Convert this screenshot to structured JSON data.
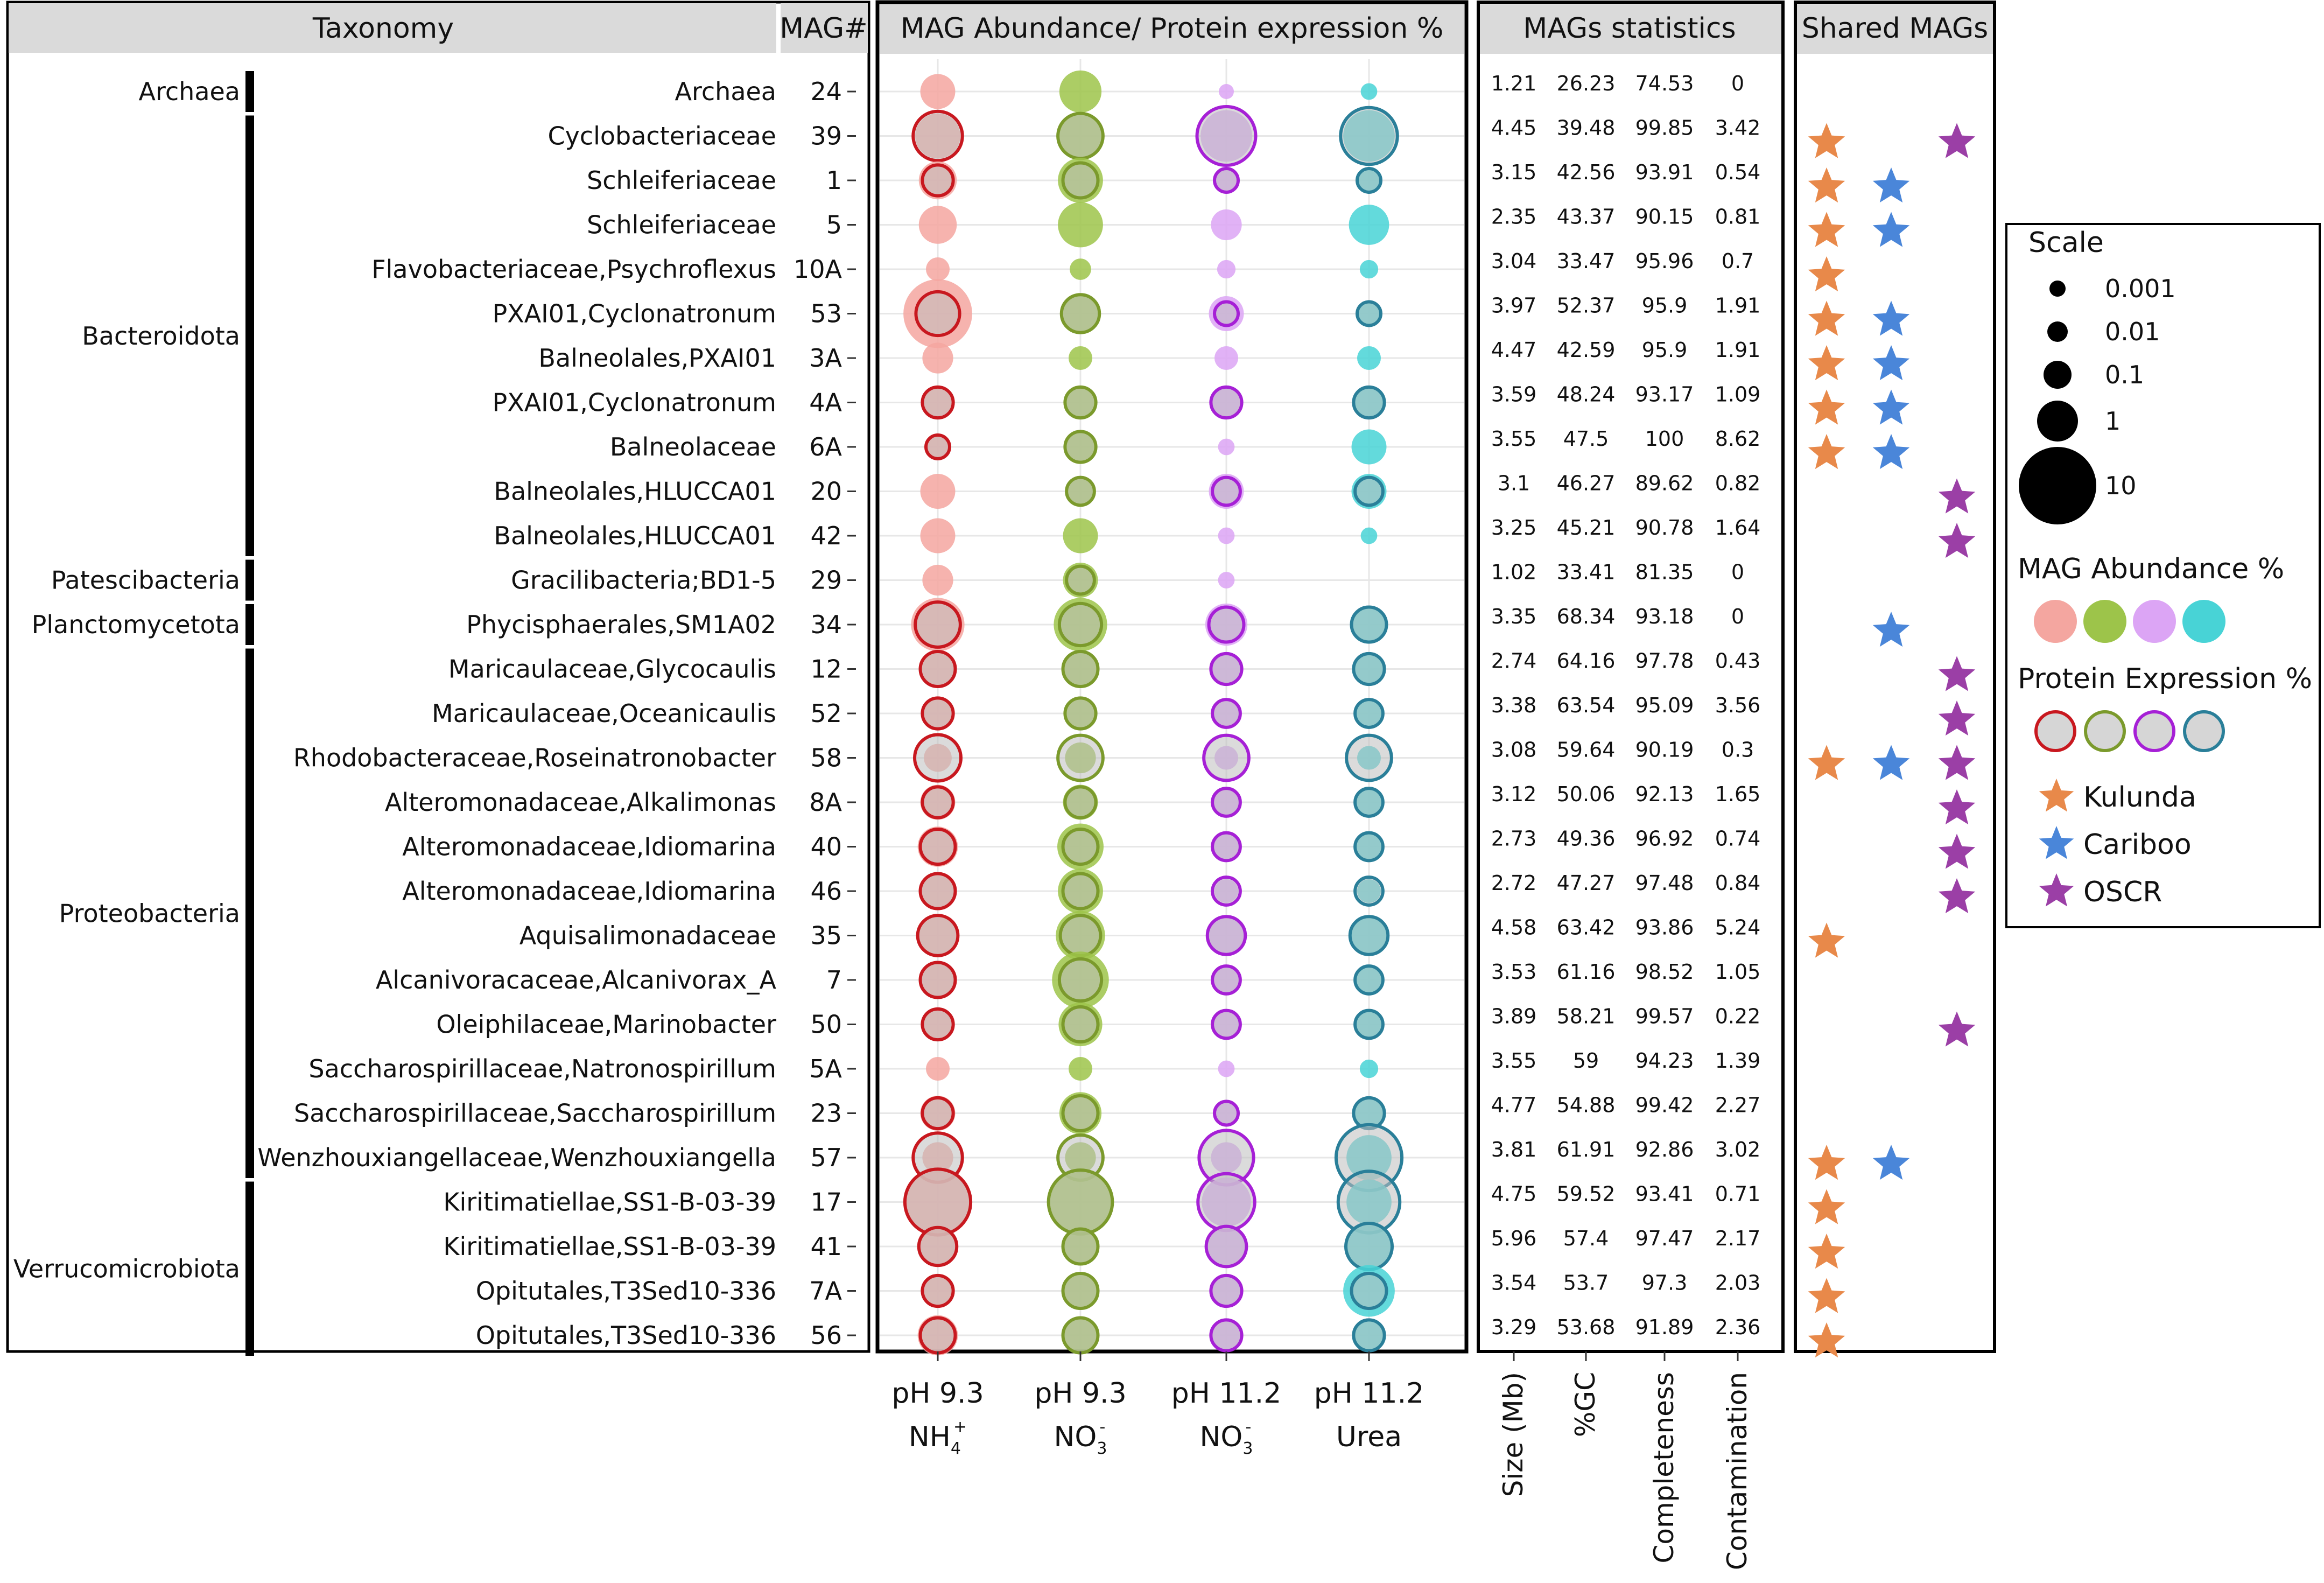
{
  "chart_data": {
    "type": "bubble-matrix",
    "headers": {
      "taxonomy": "Taxonomy",
      "mag": "MAG#",
      "abundance": "MAG Abundance/ Protein expression %",
      "stats": "MAGs statistics",
      "shared": "Shared MAGs"
    },
    "phyla": [
      {
        "name": "Archaea",
        "rows": [
          0,
          0
        ]
      },
      {
        "name": "Bacteroidota",
        "rows": [
          1,
          10
        ]
      },
      {
        "name": "Patescibacteria",
        "rows": [
          11,
          11
        ]
      },
      {
        "name": "Planctomycetota",
        "rows": [
          12,
          12
        ]
      },
      {
        "name": "Proteobacteria",
        "rows": [
          13,
          24
        ]
      },
      {
        "name": "Verrucomicrobiota",
        "rows": [
          25,
          28
        ]
      }
    ],
    "conditions": [
      {
        "line1": "pH 9.3",
        "line2": "NH",
        "sub": "4",
        "sup": "+",
        "fill": "#f4a6a0",
        "stroke": "#c8181f"
      },
      {
        "line1": "pH 9.3",
        "line2": "NO",
        "sub": "3",
        "sup": "-",
        "fill": "#9dc44a",
        "stroke": "#7b9a2c"
      },
      {
        "line1": "pH 11.2",
        "line2": "NO",
        "sub": "3",
        "sup": "-",
        "fill": "#dca5f5",
        "stroke": "#a620d6"
      },
      {
        "line1": "pH 11.2",
        "line2": "Urea",
        "sub": "",
        "sup": "",
        "fill": "#48d3d6",
        "stroke": "#2a7f99"
      }
    ],
    "stats_columns": [
      "Size (Mb)",
      "%GC",
      "Completeness",
      "Contamination"
    ],
    "rows": [
      {
        "taxon": "Archaea",
        "mag": "24",
        "stats": [
          "1.21",
          "26.23",
          "74.53",
          "0"
        ],
        "ab": [
          0.3,
          0.6,
          0.02,
          0.05
        ],
        "pe": [
          null,
          null,
          null,
          null
        ],
        "shared": [
          false,
          false,
          false
        ]
      },
      {
        "taxon": "Cyclobacteriaceae",
        "mag": "39",
        "stats": [
          "4.45",
          "39.48",
          "99.85",
          "3.42"
        ],
        "ab": [
          0.8,
          0.8,
          1.5,
          1.5
        ],
        "pe": [
          1.2,
          0.8,
          3,
          2.5
        ],
        "shared": [
          true,
          false,
          true
        ]
      },
      {
        "taxon": "Schleiferiaceae",
        "mag": "1",
        "stats": [
          "3.15",
          "42.56",
          "93.91",
          "0.54"
        ],
        "ab": [
          0.4,
          0.8,
          0.08,
          0.08
        ],
        "pe": [
          0.2,
          0.3,
          0.1,
          0.1
        ],
        "shared": [
          true,
          true,
          false
        ]
      },
      {
        "taxon": "Schleiferiaceae",
        "mag": "5",
        "stats": [
          "2.35",
          "43.37",
          "90.15",
          "0.81"
        ],
        "ab": [
          0.4,
          0.8,
          0.2,
          0.5
        ],
        "pe": [
          null,
          null,
          null,
          null
        ],
        "shared": [
          true,
          true,
          false
        ]
      },
      {
        "taxon": "Flavobacteriaceae,Psychroflexus",
        "mag": "10A",
        "stats": [
          "3.04",
          "33.47",
          "95.96",
          "0.7"
        ],
        "ab": [
          0.1,
          0.08,
          0.06,
          0.06
        ],
        "pe": [
          null,
          null,
          null,
          null
        ],
        "shared": [
          true,
          false,
          false
        ]
      },
      {
        "taxon": "PXAI01,Cyclonatronum",
        "mag": "53",
        "stats": [
          "3.97",
          "52.37",
          "95.9",
          "1.91"
        ],
        "ab": [
          8,
          0.5,
          0.3,
          0.1
        ],
        "pe": [
          0.7,
          0.4,
          0.1,
          0.1
        ],
        "shared": [
          true,
          true,
          false
        ]
      },
      {
        "taxon": "Balneolales,PXAI01",
        "mag": "3A",
        "stats": [
          "4.47",
          "42.59",
          "95.9",
          "1.91"
        ],
        "ab": [
          0.2,
          0.1,
          0.1,
          0.1
        ],
        "pe": [
          null,
          null,
          null,
          null
        ],
        "shared": [
          true,
          true,
          false
        ]
      },
      {
        "taxon": "PXAI01,Cyclonatronum",
        "mag": "4A",
        "stats": [
          "3.59",
          "48.24",
          "93.17",
          "1.09"
        ],
        "ab": [
          0.2,
          0.2,
          0.2,
          0.2
        ],
        "pe": [
          0.2,
          0.2,
          0.2,
          0.2
        ],
        "shared": [
          true,
          true,
          false
        ]
      },
      {
        "taxon": "Balneolaceae",
        "mag": "6A",
        "stats": [
          "3.55",
          "47.5",
          "100",
          "8.62"
        ],
        "ab": [
          0.1,
          0.2,
          0.05,
          0.3
        ],
        "pe": [
          0.1,
          0.2,
          null,
          null
        ],
        "shared": [
          true,
          true,
          false
        ]
      },
      {
        "taxon": "Balneolales,HLUCCA01",
        "mag": "20",
        "stats": [
          "3.1",
          "46.27",
          "89.62",
          "0.82"
        ],
        "ab": [
          0.3,
          0.15,
          0.3,
          0.3
        ],
        "pe": [
          null,
          0.15,
          0.15,
          0.15
        ],
        "shared": [
          false,
          false,
          true
        ]
      },
      {
        "taxon": "Balneolales,HLUCCA01",
        "mag": "42",
        "stats": [
          "3.25",
          "45.21",
          "90.78",
          "1.64"
        ],
        "ab": [
          0.3,
          0.3,
          0.05,
          0.05
        ],
        "pe": [
          null,
          null,
          null,
          null
        ],
        "shared": [
          false,
          false,
          true
        ]
      },
      {
        "taxon": "Gracilibacteria;BD1-5",
        "mag": "29",
        "stats": [
          "1.02",
          "33.41",
          "81.35",
          "0"
        ],
        "ab": [
          0.2,
          0.3,
          0.05,
          null
        ],
        "pe": [
          null,
          0.15,
          null,
          null
        ],
        "shared": [
          false,
          false,
          false
        ]
      },
      {
        "taxon": "Phycisphaerales,SM1A02",
        "mag": "34",
        "stats": [
          "3.35",
          "68.34",
          "93.18",
          "0"
        ],
        "ab": [
          1.8,
          1.8,
          0.6,
          0.3
        ],
        "pe": [
          0.8,
          0.6,
          0.3,
          0.3
        ],
        "shared": [
          false,
          true,
          false
        ]
      },
      {
        "taxon": "Maricaulaceae,Glycocaulis",
        "mag": "12",
        "stats": [
          "2.74",
          "64.16",
          "97.78",
          "0.43"
        ],
        "ab": [
          0.4,
          0.4,
          0.2,
          0.2
        ],
        "pe": [
          0.3,
          0.3,
          0.2,
          0.2
        ],
        "shared": [
          false,
          false,
          true
        ]
      },
      {
        "taxon": "Maricaulaceae,Oceanicaulis",
        "mag": "52",
        "stats": [
          "3.38",
          "63.54",
          "95.09",
          "3.56"
        ],
        "ab": [
          0.2,
          0.2,
          0.15,
          0.15
        ],
        "pe": [
          0.2,
          0.2,
          0.15,
          0.15
        ],
        "shared": [
          false,
          false,
          true
        ]
      },
      {
        "taxon": "Rhodobacteraceae,Roseinatronobacter",
        "mag": "58",
        "stats": [
          "3.08",
          "59.64",
          "90.19",
          "0.3"
        ],
        "ab": [
          0.15,
          0.2,
          0.1,
          0.1
        ],
        "pe": [
          0.9,
          0.8,
          0.8,
          0.8
        ],
        "shared": [
          true,
          true,
          true
        ]
      },
      {
        "taxon": "Alteromonadaceae,Alkalimonas",
        "mag": "8A",
        "stats": [
          "3.12",
          "50.06",
          "92.13",
          "1.65"
        ],
        "ab": [
          0.3,
          0.3,
          0.15,
          0.15
        ],
        "pe": [
          0.2,
          0.2,
          0.15,
          0.15
        ],
        "shared": [
          false,
          false,
          true
        ]
      },
      {
        "taxon": "Alteromonadaceae,Idiomarina",
        "mag": "40",
        "stats": [
          "2.73",
          "49.36",
          "96.92",
          "0.74"
        ],
        "ab": [
          0.5,
          0.9,
          0.15,
          0.15
        ],
        "pe": [
          0.3,
          0.3,
          0.15,
          0.15
        ],
        "shared": [
          false,
          false,
          true
        ]
      },
      {
        "taxon": "Alteromonadaceae,Idiomarina",
        "mag": "46",
        "stats": [
          "2.72",
          "47.27",
          "97.48",
          "0.84"
        ],
        "ab": [
          0.4,
          0.8,
          0.1,
          0.1
        ],
        "pe": [
          0.3,
          0.3,
          0.15,
          0.15
        ],
        "shared": [
          false,
          false,
          true
        ]
      },
      {
        "taxon": "Aquisalimonadaceae",
        "mag": "35",
        "stats": [
          "4.58",
          "63.42",
          "93.86",
          "5.24"
        ],
        "ab": [
          0.6,
          1.2,
          0.4,
          0.4
        ],
        "pe": [
          0.5,
          0.5,
          0.4,
          0.4
        ],
        "shared": [
          true,
          false,
          false
        ]
      },
      {
        "taxon": "Alcanivoracaceae,Alcanivorax_A",
        "mag": "7",
        "stats": [
          "3.53",
          "61.16",
          "98.52",
          "1.05"
        ],
        "ab": [
          0.4,
          2.5,
          0.15,
          0.15
        ],
        "pe": [
          0.3,
          0.6,
          0.15,
          0.15
        ],
        "shared": [
          false,
          false,
          false
        ]
      },
      {
        "taxon": "Oleiphilaceae,Marinobacter",
        "mag": "50",
        "stats": [
          "3.89",
          "58.21",
          "99.57",
          "0.22"
        ],
        "ab": [
          0.2,
          0.7,
          0.15,
          0.15
        ],
        "pe": [
          0.2,
          0.3,
          0.15,
          0.15
        ],
        "shared": [
          false,
          false,
          true
        ]
      },
      {
        "taxon": "Saccharospirillaceae,Natronospirillum",
        "mag": "5A",
        "stats": [
          "3.55",
          "59",
          "94.23",
          "1.39"
        ],
        "ab": [
          0.1,
          0.1,
          0.05,
          0.06
        ],
        "pe": [
          null,
          null,
          null,
          null
        ],
        "shared": [
          false,
          false,
          false
        ]
      },
      {
        "taxon": "Saccharospirillaceae,Saccharospirillum",
        "mag": "23",
        "stats": [
          "4.77",
          "54.88",
          "99.42",
          "2.27"
        ],
        "ab": [
          0.3,
          0.6,
          0.1,
          0.2
        ],
        "pe": [
          0.2,
          0.3,
          0.1,
          0.2
        ],
        "shared": [
          false,
          false,
          false
        ]
      },
      {
        "taxon": "Wenzhouxiangellaceae,Wenzhouxiangella",
        "mag": "57",
        "stats": [
          "3.81",
          "61.91",
          "92.86",
          "3.02"
        ],
        "ab": [
          0.2,
          0.2,
          0.2,
          0.8
        ],
        "pe": [
          1.2,
          0.8,
          2,
          6
        ],
        "shared": [
          true,
          true,
          false
        ]
      },
      {
        "taxon": "Kiritimatiellae,SS1-B-03-39",
        "mag": "17",
        "stats": [
          "4.75",
          "59.52",
          "93.41",
          "0.71"
        ],
        "ab": [
          5,
          4,
          1.2,
          0.8
        ],
        "pe": [
          6,
          5,
          2.5,
          4
        ],
        "shared": [
          true,
          false,
          false
        ]
      },
      {
        "taxon": "Kiritimatiellae,SS1-B-03-39",
        "mag": "41",
        "stats": [
          "5.96",
          "57.4",
          "97.47",
          "2.17"
        ],
        "ab": [
          0.3,
          0.3,
          0.4,
          0.9
        ],
        "pe": [
          0.4,
          0.3,
          0.5,
          0.9
        ],
        "shared": [
          true,
          false,
          false
        ]
      },
      {
        "taxon": "Opitutales,T3Sed10-336",
        "mag": "7A",
        "stats": [
          "3.54",
          "53.7",
          "97.3",
          "2.03"
        ],
        "ab": [
          0.2,
          0.3,
          0.15,
          1.5
        ],
        "pe": [
          0.2,
          0.3,
          0.2,
          0.3
        ],
        "shared": [
          true,
          false,
          false
        ]
      },
      {
        "taxon": "Opitutales,T3Sed10-336",
        "mag": "56",
        "stats": [
          "3.29",
          "53.68",
          "91.89",
          "2.36"
        ],
        "ab": [
          0.5,
          0.3,
          0.15,
          0.2
        ],
        "pe": [
          0.3,
          0.3,
          0.2,
          0.2
        ],
        "shared": [
          true,
          false,
          false
        ]
      }
    ],
    "legend": {
      "scale_title": "Scale",
      "scale_values": [
        0.001,
        0.01,
        0.1,
        1,
        10
      ],
      "scale_labels": [
        "0.001",
        "0.01",
        "0.1",
        "1",
        "10"
      ],
      "abundance_title": "MAG Abundance %",
      "expression_title": "Protein Expression %",
      "shared": [
        {
          "name": "Kulunda",
          "color": "#e8894a"
        },
        {
          "name": "Cariboo",
          "color": "#4a86d9"
        },
        {
          "name": "OSCR",
          "color": "#9b3fa6"
        }
      ]
    }
  }
}
